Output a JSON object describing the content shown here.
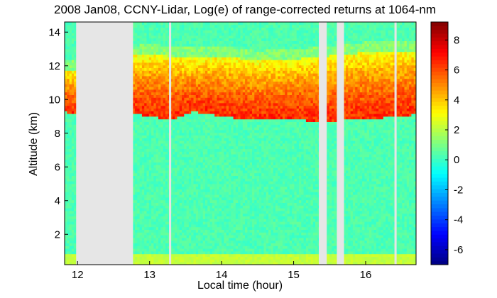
{
  "chart_data": {
    "type": "heatmap",
    "title": "2008 Jan08, CCNY-Lidar, Log(e) of range-corrected returns at 1064-nm",
    "xlabel": "Local time (hour)",
    "ylabel": "Altitude (km)",
    "xlim": [
      11.82,
      16.7
    ],
    "ylim": [
      0.2,
      14.6
    ],
    "x_ticks": [
      12,
      13,
      14,
      15,
      16
    ],
    "y_ticks": [
      2,
      4,
      6,
      8,
      10,
      12,
      14
    ],
    "colorbar": {
      "range": [
        -7,
        9.2
      ],
      "ticks": [
        -6,
        -4,
        -2,
        0,
        2,
        4,
        6,
        8
      ],
      "colormap": "jet"
    },
    "data_gaps": [
      {
        "start": 11.98,
        "end": 12.77
      },
      {
        "start": 13.27,
        "end": 13.3
      },
      {
        "start": 15.35,
        "end": 15.46
      },
      {
        "start": 15.6,
        "end": 15.7
      },
      {
        "start": 16.4,
        "end": 16.43
      }
    ],
    "cloud_layer": {
      "base_km": [
        [
          11.82,
          9.3
        ],
        [
          11.98,
          9.1
        ],
        [
          12.77,
          9.2
        ],
        [
          13.0,
          9.0
        ],
        [
          13.3,
          8.8
        ],
        [
          13.6,
          9.3
        ],
        [
          14.0,
          9.0
        ],
        [
          14.2,
          8.9
        ],
        [
          14.6,
          8.8
        ],
        [
          15.0,
          8.8
        ],
        [
          15.4,
          8.7
        ],
        [
          15.8,
          8.8
        ],
        [
          16.2,
          8.9
        ],
        [
          16.7,
          9.1
        ]
      ],
      "top_km": [
        [
          11.82,
          11.8
        ],
        [
          11.98,
          11.7
        ],
        [
          12.77,
          12.6
        ],
        [
          13.0,
          12.7
        ],
        [
          13.5,
          12.5
        ],
        [
          14.0,
          12.6
        ],
        [
          14.5,
          12.3
        ],
        [
          15.0,
          12.4
        ],
        [
          15.5,
          12.6
        ],
        [
          16.0,
          12.8
        ],
        [
          16.7,
          12.9
        ]
      ],
      "log_return_range": [
        3,
        6.5
      ]
    },
    "background_log_return": 0.3,
    "near_surface_log_return": 2.2
  }
}
